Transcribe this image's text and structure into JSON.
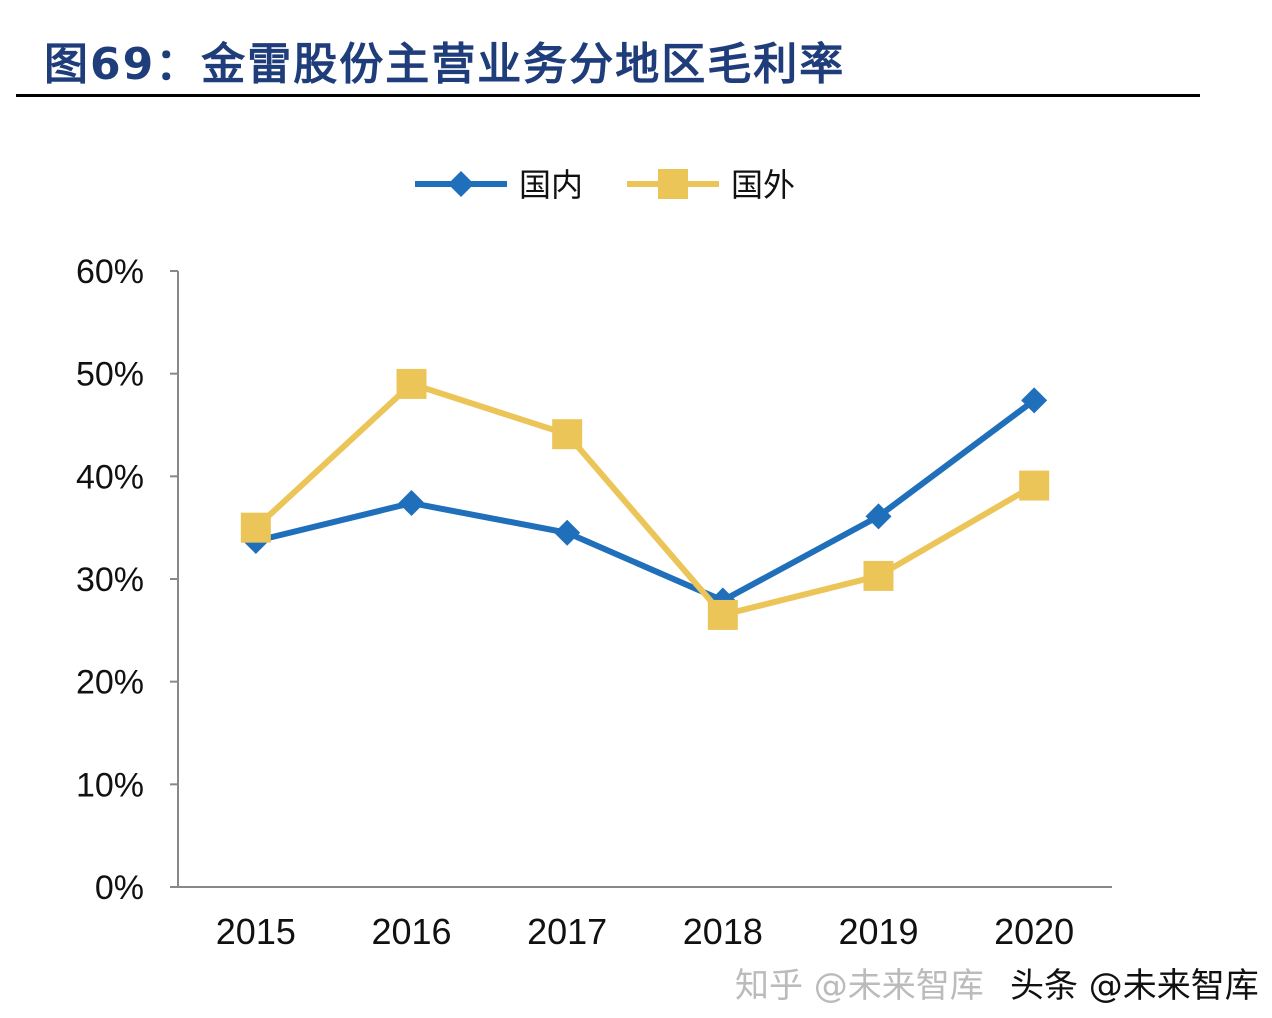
{
  "title": "图69：金雷股份主营业务分地区毛利率",
  "watermarks": [
    "知乎 @未来智库",
    "头条 @未来智库"
  ],
  "chart_data": {
    "type": "line",
    "categories": [
      "2015",
      "2016",
      "2017",
      "2018",
      "2019",
      "2020"
    ],
    "series": [
      {
        "name": "国内",
        "color": "#1f6fba",
        "marker": "diamond",
        "values": [
          33.7,
          37.4,
          34.5,
          27.9,
          36.1,
          47.4
        ]
      },
      {
        "name": "国外",
        "color": "#ecc558",
        "marker": "square",
        "values": [
          35.0,
          49.0,
          44.1,
          26.5,
          30.3,
          39.1
        ]
      }
    ],
    "ylim": [
      0,
      60
    ],
    "yticks": [
      "0%",
      "10%",
      "20%",
      "30%",
      "40%",
      "50%",
      "60%"
    ],
    "legend": "top",
    "grid": false
  }
}
